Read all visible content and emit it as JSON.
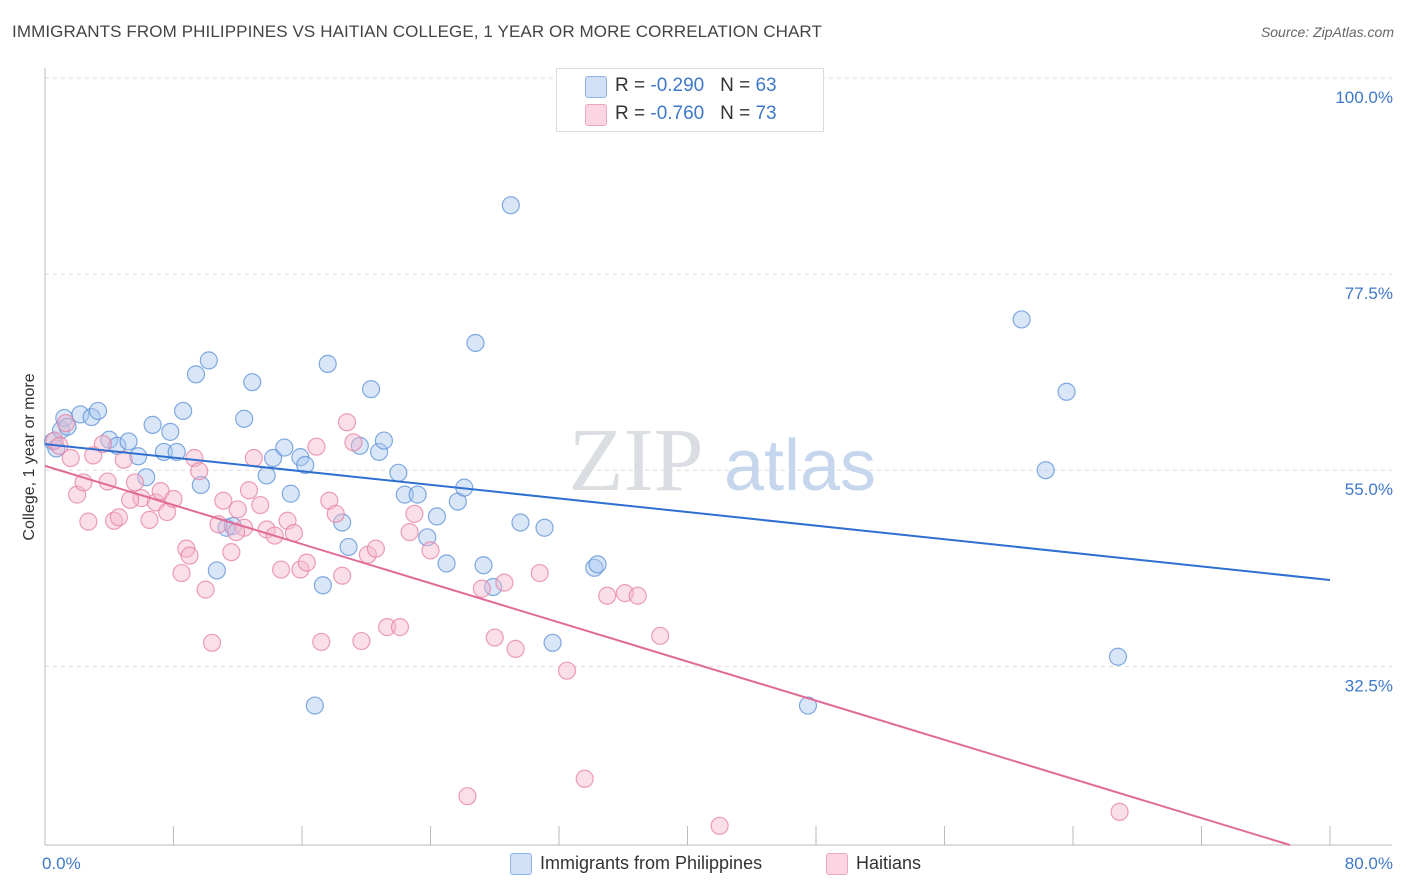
{
  "header": {
    "title": "IMMIGRANTS FROM PHILIPPINES VS HAITIAN COLLEGE, 1 YEAR OR MORE CORRELATION CHART",
    "source": "Source: ZipAtlas.com"
  },
  "watermark": {
    "zip": "ZIP",
    "atlas": "atlas"
  },
  "legend": {
    "rows": [
      {
        "r_label": "R = ",
        "r_value": "-0.290",
        "n_label": "N = ",
        "n_value": "63",
        "color": "#a8c8f0"
      },
      {
        "r_label": "R = ",
        "r_value": "-0.760",
        "n_label": "N = ",
        "n_value": "73",
        "color": "#f5b8cc"
      }
    ]
  },
  "chart_data": {
    "type": "scatter",
    "title": "IMMIGRANTS FROM PHILIPPINES VS HAITIAN COLLEGE, 1 YEAR OR MORE CORRELATION CHART",
    "xlabel": "",
    "ylabel": "College, 1 year or more",
    "xlim": [
      0,
      80
    ],
    "ylim": [
      12,
      100
    ],
    "x_tick_labels": [
      "0.0%",
      "80.0%"
    ],
    "y_ticks": [
      {
        "value": 100,
        "label": "100.0%"
      },
      {
        "value": 77.5,
        "label": "77.5%"
      },
      {
        "value": 55,
        "label": "55.0%"
      },
      {
        "value": 32.5,
        "label": "32.5%"
      }
    ],
    "grid": true,
    "series": [
      {
        "name": "Immigrants from Philippines",
        "color": "#5b8fd6",
        "fill": "#a8c8f0",
        "r": -0.29,
        "n": 63,
        "trend": {
          "x": [
            0,
            80
          ],
          "y": [
            58.0,
            42.4
          ]
        },
        "points": [
          [
            0.5,
            58.3
          ],
          [
            0.7,
            57.5
          ],
          [
            1.0,
            59.6
          ],
          [
            1.2,
            61.0
          ],
          [
            1.4,
            60.0
          ],
          [
            2.2,
            61.4
          ],
          [
            2.9,
            61.1
          ],
          [
            3.3,
            61.8
          ],
          [
            4.0,
            58.5
          ],
          [
            4.5,
            57.8
          ],
          [
            5.2,
            58.3
          ],
          [
            5.8,
            56.6
          ],
          [
            6.3,
            54.2
          ],
          [
            6.7,
            60.2
          ],
          [
            7.4,
            57.1
          ],
          [
            7.8,
            59.4
          ],
          [
            8.2,
            57.1
          ],
          [
            8.6,
            61.8
          ],
          [
            9.4,
            66.0
          ],
          [
            9.7,
            53.3
          ],
          [
            10.2,
            67.6
          ],
          [
            10.7,
            43.5
          ],
          [
            11.3,
            48.4
          ],
          [
            11.7,
            48.6
          ],
          [
            12.4,
            60.9
          ],
          [
            12.9,
            65.1
          ],
          [
            13.8,
            54.4
          ],
          [
            14.2,
            56.4
          ],
          [
            14.9,
            57.6
          ],
          [
            15.3,
            52.3
          ],
          [
            15.9,
            56.5
          ],
          [
            16.2,
            55.6
          ],
          [
            16.8,
            28.0
          ],
          [
            17.3,
            41.8
          ],
          [
            17.6,
            67.2
          ],
          [
            18.5,
            49.0
          ],
          [
            18.9,
            46.2
          ],
          [
            19.6,
            57.8
          ],
          [
            20.3,
            64.3
          ],
          [
            20.8,
            57.1
          ],
          [
            21.1,
            58.4
          ],
          [
            22.0,
            54.7
          ],
          [
            22.4,
            52.2
          ],
          [
            23.2,
            52.2
          ],
          [
            23.8,
            47.3
          ],
          [
            24.4,
            49.7
          ],
          [
            25.0,
            44.3
          ],
          [
            25.7,
            51.4
          ],
          [
            26.1,
            53.0
          ],
          [
            26.8,
            69.6
          ],
          [
            27.3,
            44.1
          ],
          [
            27.9,
            41.6
          ],
          [
            29.0,
            85.4
          ],
          [
            29.6,
            49.0
          ],
          [
            31.1,
            48.4
          ],
          [
            31.6,
            35.2
          ],
          [
            34.2,
            43.8
          ],
          [
            34.4,
            44.2
          ],
          [
            47.5,
            28.0
          ],
          [
            60.8,
            72.3
          ],
          [
            63.6,
            64.0
          ],
          [
            66.8,
            33.6
          ],
          [
            62.3,
            55.0
          ]
        ]
      },
      {
        "name": "Haitians",
        "color": "#e57fa2",
        "fill": "#f5b8cc",
        "r": -0.76,
        "n": 73,
        "trend": {
          "x": [
            0,
            80
          ],
          "y": [
            55.5,
            10.6
          ]
        },
        "points": [
          [
            0.6,
            58.4
          ],
          [
            0.9,
            57.8
          ],
          [
            1.3,
            60.4
          ],
          [
            1.6,
            56.4
          ],
          [
            2.0,
            52.2
          ],
          [
            2.4,
            53.6
          ],
          [
            2.7,
            49.1
          ],
          [
            3.0,
            56.7
          ],
          [
            3.6,
            58.0
          ],
          [
            3.9,
            53.7
          ],
          [
            4.3,
            49.2
          ],
          [
            4.6,
            49.6
          ],
          [
            4.9,
            56.2
          ],
          [
            5.6,
            53.6
          ],
          [
            6.0,
            51.8
          ],
          [
            6.5,
            49.3
          ],
          [
            6.9,
            51.3
          ],
          [
            7.2,
            52.6
          ],
          [
            7.6,
            50.2
          ],
          [
            8.0,
            51.7
          ],
          [
            8.5,
            43.2
          ],
          [
            8.8,
            46.0
          ],
          [
            9.3,
            56.4
          ],
          [
            9.6,
            54.9
          ],
          [
            10.0,
            41.3
          ],
          [
            10.4,
            35.2
          ],
          [
            10.8,
            48.8
          ],
          [
            11.1,
            51.5
          ],
          [
            11.6,
            45.6
          ],
          [
            12.0,
            50.5
          ],
          [
            12.4,
            48.4
          ],
          [
            12.7,
            52.7
          ],
          [
            13.0,
            56.4
          ],
          [
            13.4,
            51.0
          ],
          [
            13.8,
            48.2
          ],
          [
            14.3,
            47.5
          ],
          [
            14.7,
            43.6
          ],
          [
            15.1,
            49.2
          ],
          [
            15.5,
            47.8
          ],
          [
            15.9,
            43.6
          ],
          [
            16.3,
            44.4
          ],
          [
            16.9,
            57.7
          ],
          [
            17.2,
            35.3
          ],
          [
            17.7,
            51.5
          ],
          [
            18.1,
            50.0
          ],
          [
            18.5,
            42.9
          ],
          [
            18.8,
            60.5
          ],
          [
            19.2,
            58.2
          ],
          [
            19.7,
            35.4
          ],
          [
            20.1,
            45.3
          ],
          [
            20.6,
            46.0
          ],
          [
            21.3,
            37.0
          ],
          [
            22.1,
            37.0
          ],
          [
            22.7,
            47.9
          ],
          [
            23.0,
            50.0
          ],
          [
            26.3,
            17.6
          ],
          [
            27.2,
            41.4
          ],
          [
            28.0,
            35.8
          ],
          [
            28.6,
            42.1
          ],
          [
            29.3,
            34.5
          ],
          [
            30.8,
            43.2
          ],
          [
            32.5,
            32.0
          ],
          [
            33.6,
            19.6
          ],
          [
            35.0,
            40.6
          ],
          [
            36.1,
            40.9
          ],
          [
            36.9,
            40.6
          ],
          [
            38.3,
            36.0
          ],
          [
            42.0,
            14.2
          ],
          [
            66.9,
            15.8
          ],
          [
            5.3,
            51.6
          ],
          [
            9.0,
            45.2
          ],
          [
            11.9,
            47.9
          ],
          [
            24.0,
            45.8
          ]
        ]
      }
    ]
  },
  "bottom_legend": {
    "items": [
      {
        "label": "Immigrants from Philippines",
        "color": "#a8c8f0"
      },
      {
        "label": "Haitians",
        "color": "#f5b8cc"
      }
    ]
  }
}
